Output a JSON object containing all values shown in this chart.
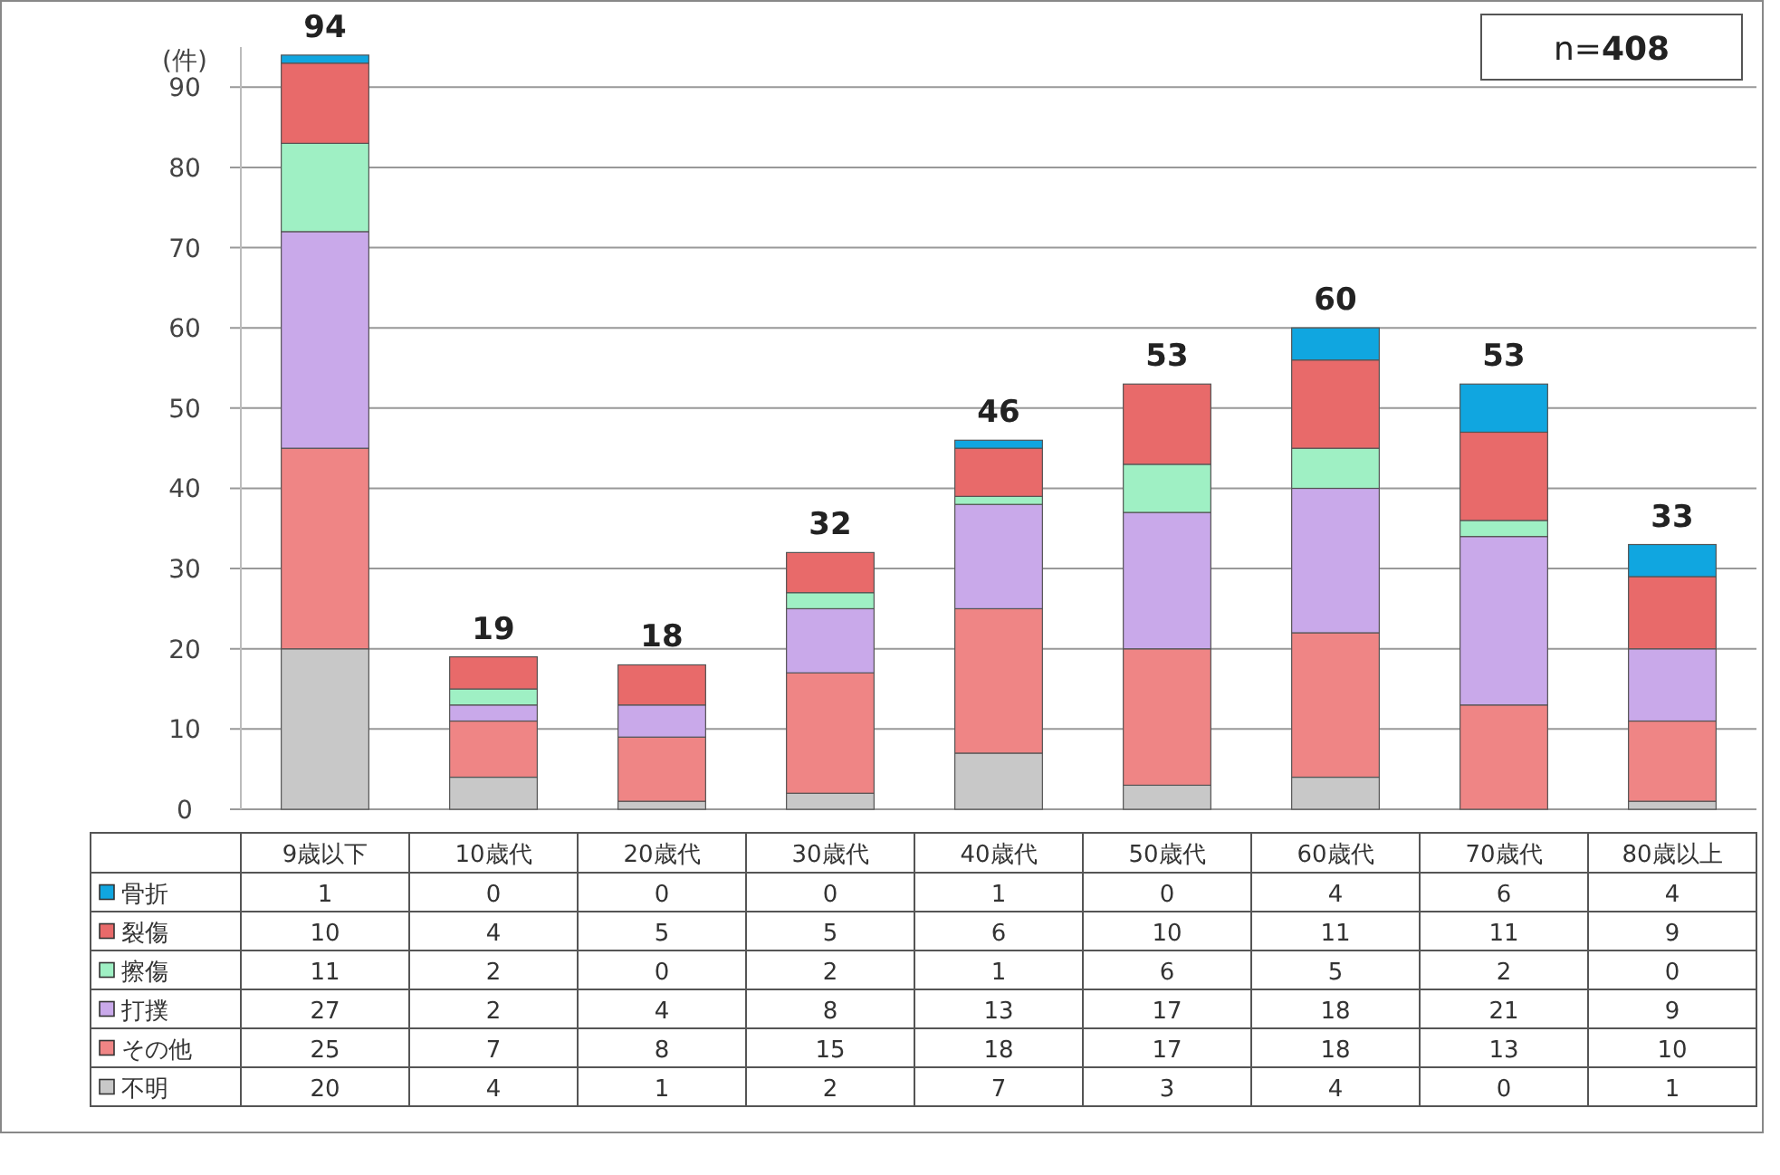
{
  "chart_data": {
    "type": "bar",
    "stacked": true,
    "ylabel": "(件)",
    "annotations": [
      "n=**408**"
    ],
    "categories": [
      "9歳以下",
      "10歳代",
      "20歳代",
      "30歳代",
      "40歳代",
      "50歳代",
      "60歳代",
      "70歳代",
      "80歳以上"
    ],
    "series": [
      {
        "name": "不明",
        "color": "#c8c8c8",
        "values": [
          20,
          4,
          1,
          2,
          7,
          3,
          4,
          0,
          1
        ]
      },
      {
        "name": "その他",
        "color": "#ef8585",
        "values": [
          25,
          7,
          8,
          15,
          18,
          17,
          18,
          13,
          10
        ]
      },
      {
        "name": "打撲",
        "color": "#c9a9ea",
        "values": [
          27,
          2,
          4,
          8,
          13,
          17,
          18,
          21,
          9
        ]
      },
      {
        "name": "擦傷",
        "color": "#9ff0c4",
        "values": [
          11,
          2,
          0,
          2,
          1,
          6,
          5,
          2,
          0
        ]
      },
      {
        "name": "裂傷",
        "color": "#e86a6a",
        "values": [
          10,
          4,
          5,
          5,
          6,
          10,
          11,
          11,
          9
        ]
      },
      {
        "name": "骨折",
        "color": "#10a6e0",
        "values": [
          1,
          0,
          0,
          0,
          1,
          0,
          4,
          6,
          4
        ]
      }
    ],
    "totals": [
      "94",
      "19",
      "18",
      "32",
      "46",
      "53",
      "60",
      "53",
      "33"
    ],
    "ylim": [
      0,
      95
    ],
    "yticks": [
      0,
      10,
      20,
      30,
      40,
      50,
      60,
      70,
      80,
      90
    ],
    "grid": "y",
    "data_labels": true,
    "legend": "bottom"
  }
}
